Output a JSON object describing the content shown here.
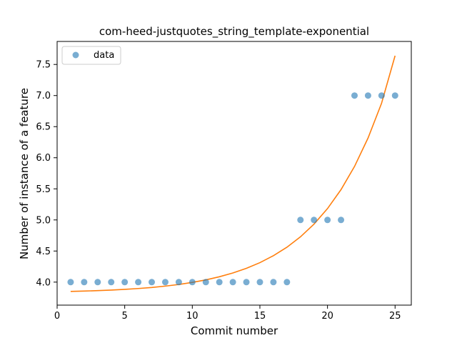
{
  "chart_data": {
    "type": "scatter",
    "title": "com-heed-justquotes_string_template-exponential",
    "xlabel": "Commit number",
    "ylabel": "Number of instance of a feature",
    "xlim": [
      0,
      26.2
    ],
    "ylim": [
      3.63,
      7.87
    ],
    "x_ticks": [
      0,
      5,
      10,
      15,
      20,
      25
    ],
    "y_ticks": [
      4.0,
      4.5,
      5.0,
      5.5,
      6.0,
      6.5,
      7.0,
      7.5
    ],
    "y_tick_labels": [
      "4.0",
      "4.5",
      "5.0",
      "5.5",
      "6.0",
      "6.5",
      "7.0",
      "7.5"
    ],
    "grid": false,
    "legend_position": "top-left",
    "series": [
      {
        "name": "data",
        "kind": "scatter",
        "color": "#1f77b4",
        "x": [
          1,
          2,
          3,
          4,
          5,
          6,
          7,
          8,
          9,
          10,
          11,
          12,
          13,
          14,
          15,
          16,
          17,
          18,
          19,
          20,
          21,
          22,
          23,
          24,
          25
        ],
        "y": [
          4,
          4,
          4,
          4,
          4,
          4,
          4,
          4,
          4,
          4,
          4,
          4,
          4,
          4,
          4,
          4,
          4,
          5,
          5,
          5,
          5,
          7,
          7,
          7,
          7
        ]
      },
      {
        "kind": "line",
        "color": "#ff7f0e",
        "x": [
          1,
          2,
          3,
          4,
          5,
          6,
          7,
          8,
          9,
          10,
          11,
          12,
          13,
          14,
          15,
          16,
          17,
          18,
          19,
          20,
          21,
          22,
          23,
          24,
          25
        ],
        "y": [
          3.85,
          3.856,
          3.863,
          3.872,
          3.883,
          3.897,
          3.914,
          3.936,
          3.962,
          3.996,
          4.036,
          4.086,
          4.147,
          4.222,
          4.313,
          4.425,
          4.561,
          4.728,
          4.932,
          5.182,
          5.487,
          5.86,
          6.317,
          6.876,
          7.64
        ]
      }
    ]
  }
}
